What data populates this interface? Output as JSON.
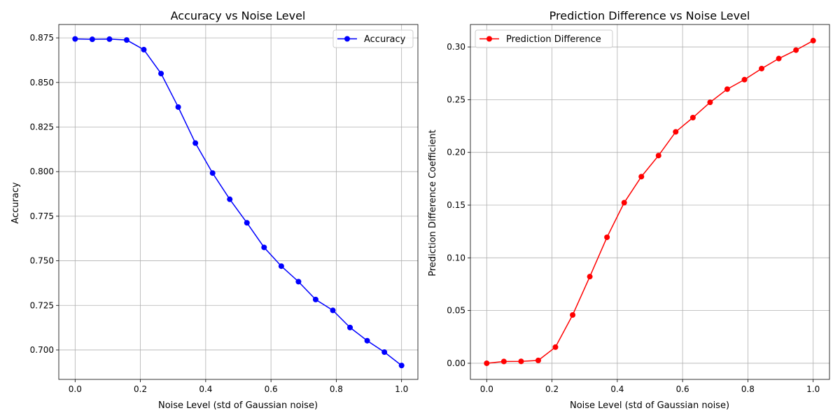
{
  "chart_data": [
    {
      "type": "line",
      "title": "Accuracy vs Noise Level",
      "xlabel": "Noise Level (std of Gaussian noise)",
      "ylabel": "Accuracy",
      "xlim": [
        -0.05,
        1.05
      ],
      "ylim": [
        0.6835,
        0.8825
      ],
      "xticks": [
        0.0,
        0.2,
        0.4,
        0.6,
        0.8,
        1.0
      ],
      "xtick_labels": [
        "0.0",
        "0.2",
        "0.4",
        "0.6",
        "0.8",
        "1.0"
      ],
      "yticks": [
        0.7,
        0.725,
        0.75,
        0.775,
        0.8,
        0.825,
        0.85,
        0.875
      ],
      "ytick_labels": [
        "0.700",
        "0.725",
        "0.750",
        "0.775",
        "0.800",
        "0.825",
        "0.850",
        "0.875"
      ],
      "grid": true,
      "legend_position": "top-right",
      "series": [
        {
          "name": "Accuracy",
          "color": "#0000ff",
          "marker": "circle",
          "x": [
            0.0,
            0.0526,
            0.1053,
            0.1579,
            0.2105,
            0.2632,
            0.3158,
            0.3684,
            0.4211,
            0.4737,
            0.5263,
            0.5789,
            0.6316,
            0.6842,
            0.7368,
            0.7895,
            0.8421,
            0.8947,
            0.9474,
            1.0
          ],
          "y": [
            0.8744,
            0.8742,
            0.8743,
            0.8738,
            0.8684,
            0.855,
            0.8362,
            0.816,
            0.7992,
            0.7845,
            0.7713,
            0.7575,
            0.747,
            0.7383,
            0.7283,
            0.7222,
            0.7126,
            0.7052,
            0.6988,
            0.6913
          ]
        }
      ]
    },
    {
      "type": "line",
      "title": "Prediction Difference vs Noise Level",
      "xlabel": "Noise Level (std of Gaussian noise)",
      "ylabel": "Prediction Difference Coefficient",
      "xlim": [
        -0.05,
        1.05
      ],
      "ylim": [
        -0.0153,
        0.3213
      ],
      "xticks": [
        0.0,
        0.2,
        0.4,
        0.6,
        0.8,
        1.0
      ],
      "xtick_labels": [
        "0.0",
        "0.2",
        "0.4",
        "0.6",
        "0.8",
        "1.0"
      ],
      "yticks": [
        0.0,
        0.05,
        0.1,
        0.15,
        0.2,
        0.25,
        0.3
      ],
      "ytick_labels": [
        "0.00",
        "0.05",
        "0.10",
        "0.15",
        "0.20",
        "0.25",
        "0.30"
      ],
      "grid": true,
      "legend_position": "top-left",
      "series": [
        {
          "name": "Prediction Difference",
          "color": "#ff0000",
          "marker": "circle",
          "x": [
            0.0,
            0.0526,
            0.1053,
            0.1579,
            0.2105,
            0.2632,
            0.3158,
            0.3684,
            0.4211,
            0.4737,
            0.5263,
            0.5789,
            0.6316,
            0.6842,
            0.7368,
            0.7895,
            0.8421,
            0.8947,
            0.9474,
            1.0
          ],
          "y": [
            0.0,
            0.0017,
            0.0018,
            0.0027,
            0.0153,
            0.0458,
            0.0822,
            0.1195,
            0.1523,
            0.177,
            0.197,
            0.2195,
            0.233,
            0.2475,
            0.26,
            0.269,
            0.2795,
            0.289,
            0.297,
            0.306
          ]
        }
      ]
    }
  ]
}
